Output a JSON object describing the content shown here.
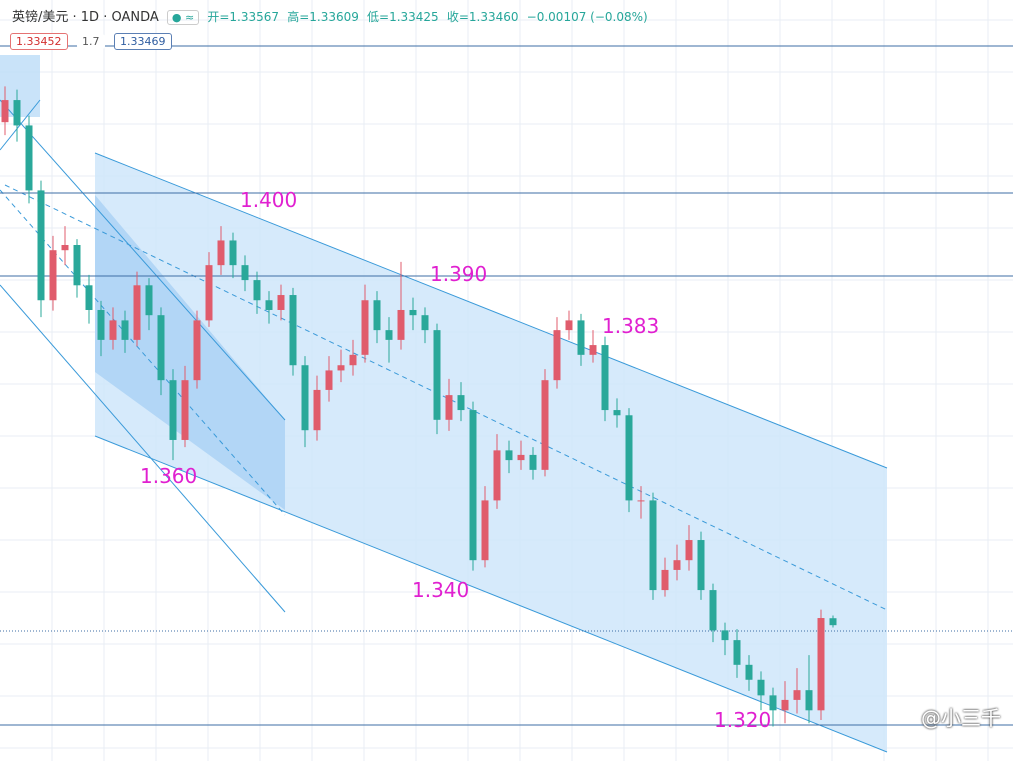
{
  "header": {
    "symbol": "英镑/美元 · 1D · OANDA",
    "ohlc": [
      "开=1.33567",
      "高=1.33609",
      "低=1.33425",
      "收=1.33460",
      "−0.00107 (−0.08%)"
    ],
    "badges": [
      "1.33452",
      "1.7",
      "1.33469"
    ]
  },
  "watermark": "@小三千",
  "chart_data": {
    "type": "candlestick",
    "ylim": [
      1.3137,
      1.4308
    ],
    "up_color": "#e05c6c",
    "down_color": "#2aa89a",
    "annotations": [
      "1.400",
      "1.390",
      "1.383",
      "1.360",
      "1.340",
      "1.320"
    ],
    "open": [
      1.412,
      1.4154,
      1.4115,
      1.4015,
      1.3846,
      1.3923,
      1.3931,
      1.3869,
      1.3831,
      1.3785,
      1.3815,
      1.3785,
      1.3869,
      1.3823,
      1.3723,
      1.3631,
      1.3723,
      1.3815,
      1.39,
      1.3938,
      1.39,
      1.3877,
      1.3846,
      1.3831,
      1.3854,
      1.3746,
      1.3646,
      1.3708,
      1.3738,
      1.3746,
      1.3762,
      1.3846,
      1.38,
      1.3785,
      1.3831,
      1.3823,
      1.38,
      1.3662,
      1.37,
      1.3677,
      1.3446,
      1.3538,
      1.3615,
      1.36,
      1.3608,
      1.3585,
      1.3723,
      1.38,
      1.3815,
      1.3762,
      1.3777,
      1.3677,
      1.3669,
      1.3538,
      1.3538,
      1.34,
      1.3431,
      1.3446,
      1.3477,
      1.34,
      1.3338,
      1.3323,
      1.3285,
      1.3262,
      1.3238,
      1.3215,
      1.3231,
      1.3246,
      1.3215,
      1.33567
    ],
    "high": [
      1.4175,
      1.417,
      1.413,
      1.403,
      1.3945,
      1.396,
      1.394,
      1.3885,
      1.3845,
      1.3835,
      1.383,
      1.389,
      1.388,
      1.3835,
      1.374,
      1.3745,
      1.383,
      1.392,
      1.396,
      1.395,
      1.3915,
      1.389,
      1.386,
      1.387,
      1.3865,
      1.376,
      1.373,
      1.376,
      1.377,
      1.3785,
      1.387,
      1.386,
      1.382,
      1.3905,
      1.385,
      1.3835,
      1.381,
      1.3725,
      1.372,
      1.369,
      1.356,
      1.364,
      1.363,
      1.363,
      1.362,
      1.374,
      1.382,
      1.383,
      1.3825,
      1.38,
      1.379,
      1.3695,
      1.368,
      1.356,
      1.355,
      1.345,
      1.347,
      1.35,
      1.349,
      1.341,
      1.335,
      1.334,
      1.33,
      1.3275,
      1.325,
      1.326,
      1.328,
      1.33,
      1.337,
      1.33609
    ],
    "low": [
      1.41,
      1.409,
      1.3995,
      1.382,
      1.383,
      1.39,
      1.385,
      1.381,
      1.376,
      1.377,
      1.3765,
      1.3775,
      1.38,
      1.37,
      1.36,
      1.362,
      1.371,
      1.3805,
      1.3885,
      1.388,
      1.386,
      1.3825,
      1.381,
      1.3815,
      1.373,
      1.362,
      1.363,
      1.369,
      1.372,
      1.373,
      1.375,
      1.378,
      1.375,
      1.377,
      1.38,
      1.378,
      1.364,
      1.3645,
      1.366,
      1.343,
      1.3435,
      1.3525,
      1.358,
      1.3585,
      1.357,
      1.3575,
      1.371,
      1.3785,
      1.3745,
      1.375,
      1.366,
      1.365,
      1.352,
      1.351,
      1.3385,
      1.339,
      1.3415,
      1.343,
      1.3385,
      1.332,
      1.33,
      1.3265,
      1.3245,
      1.3215,
      1.319,
      1.3195,
      1.321,
      1.3195,
      1.32,
      1.33425
    ],
    "close": [
      1.4154,
      1.4115,
      1.4015,
      1.3846,
      1.3923,
      1.3931,
      1.3869,
      1.3831,
      1.3785,
      1.3815,
      1.3785,
      1.3869,
      1.3823,
      1.3723,
      1.3631,
      1.3723,
      1.3815,
      1.39,
      1.3938,
      1.39,
      1.3877,
      1.3846,
      1.3831,
      1.3854,
      1.3746,
      1.3646,
      1.3708,
      1.3738,
      1.3746,
      1.3762,
      1.3846,
      1.38,
      1.3785,
      1.3831,
      1.3823,
      1.38,
      1.3662,
      1.37,
      1.3677,
      1.3446,
      1.3538,
      1.3615,
      1.36,
      1.3608,
      1.3585,
      1.3723,
      1.38,
      1.3815,
      1.3762,
      1.3777,
      1.3677,
      1.3669,
      1.3538,
      1.3538,
      1.34,
      1.3431,
      1.3446,
      1.3477,
      1.34,
      1.3338,
      1.3323,
      1.3285,
      1.3262,
      1.3238,
      1.3215,
      1.3231,
      1.3246,
      1.3215,
      1.3357,
      1.3346
    ]
  }
}
